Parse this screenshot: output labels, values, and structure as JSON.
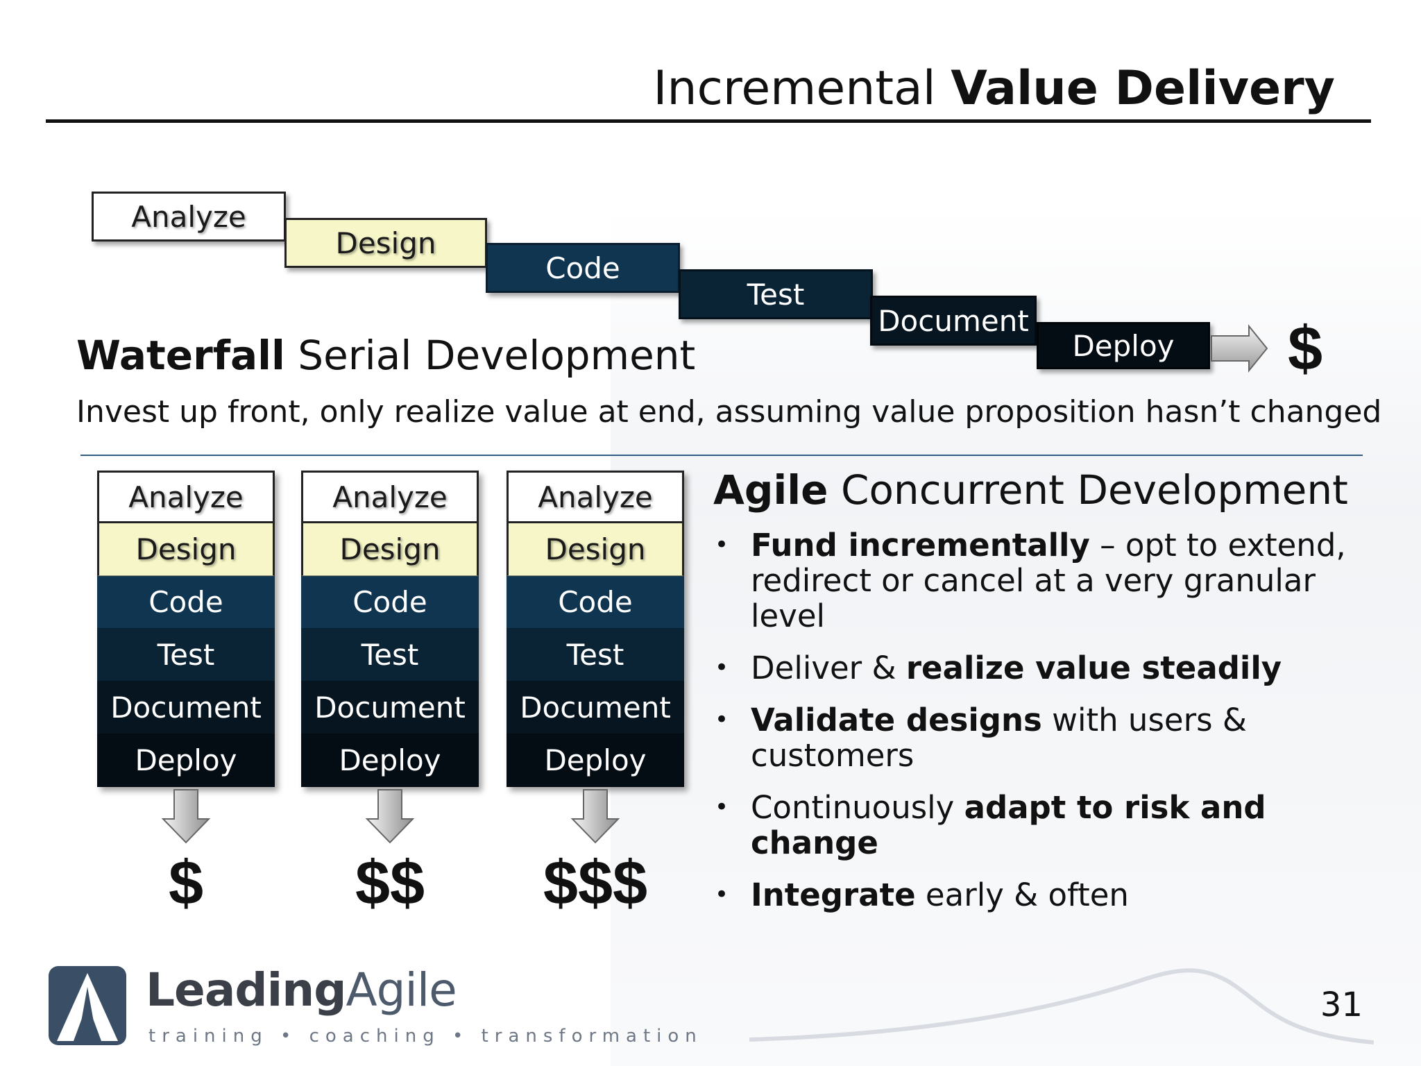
{
  "title": {
    "light": "Incremental ",
    "bold": "Value Delivery"
  },
  "waterfall": {
    "heading_bold": "Waterfall",
    "heading_rest": " Serial Development",
    "description": "Invest up front, only realize value at end, assuming value proposition hasn’t changed",
    "stages": [
      "Analyze",
      "Design",
      "Code",
      "Test",
      "Document",
      "Deploy"
    ],
    "result": "$"
  },
  "agile": {
    "heading_bold": "Agile",
    "heading_rest": " Concurrent Development",
    "columns": [
      {
        "stages": [
          "Analyze",
          "Design",
          "Code",
          "Test",
          "Document",
          "Deploy"
        ],
        "result": "$"
      },
      {
        "stages": [
          "Analyze",
          "Design",
          "Code",
          "Test",
          "Document",
          "Deploy"
        ],
        "result": "$$"
      },
      {
        "stages": [
          "Analyze",
          "Design",
          "Code",
          "Test",
          "Document",
          "Deploy"
        ],
        "result": "$$$"
      }
    ],
    "bullets": [
      [
        {
          "t": "Fund incrementally",
          "b": true
        },
        {
          "t": " – opt to extend, redirect or cancel at a very granular level",
          "b": false
        }
      ],
      [
        {
          "t": "Deliver & ",
          "b": false
        },
        {
          "t": "realize value steadily",
          "b": true
        }
      ],
      [
        {
          "t": "Validate designs",
          "b": true
        },
        {
          "t": " with users & customers",
          "b": false
        }
      ],
      [
        {
          "t": "Continuously ",
          "b": false
        },
        {
          "t": "adapt to risk and change",
          "b": true
        }
      ],
      [
        {
          "t": "Integrate",
          "b": true
        },
        {
          "t": " early & often",
          "b": false
        }
      ]
    ],
    "bullet_char": "•"
  },
  "logo": {
    "leading": "Leading",
    "agile": "Agile",
    "tagline": "training • coaching • transformation"
  },
  "page_number": "31",
  "colors": {
    "design": "#f6f6c8",
    "code": "#0f3550",
    "test": "#0b2435",
    "document": "#06151f",
    "deploy": "#050d14",
    "rule": "#2f5b86"
  }
}
